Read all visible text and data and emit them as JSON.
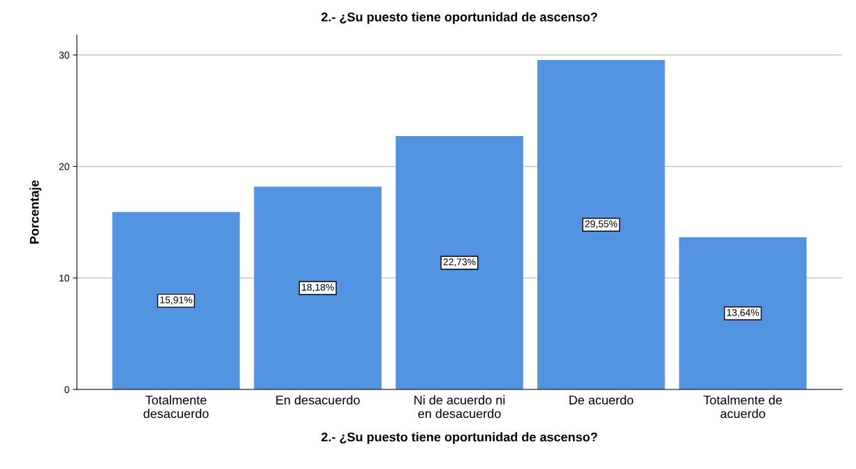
{
  "chart_data": {
    "type": "bar",
    "title": "2.- ¿Su puesto tiene oportunidad de ascenso?",
    "xlabel": "2.- ¿Su puesto tiene oportunidad de ascenso?",
    "ylabel": "Porcentaje",
    "categories": [
      "Totalmente\ndesacuerdo",
      "En desacuerdo",
      "Ni de acuerdo ni\nen desacuerdo",
      "De acuerdo",
      "Totalmente de\nacuerdo"
    ],
    "values": [
      15.91,
      18.18,
      22.73,
      29.55,
      13.64
    ],
    "value_labels": [
      "15,91%",
      "18,18%",
      "22,73%",
      "29,55%",
      "13,64%"
    ],
    "color": "#5294e2",
    "ylim": [
      0,
      31.8
    ],
    "yticks": [
      0,
      10,
      20,
      30
    ],
    "grid": "y",
    "legend": false
  }
}
